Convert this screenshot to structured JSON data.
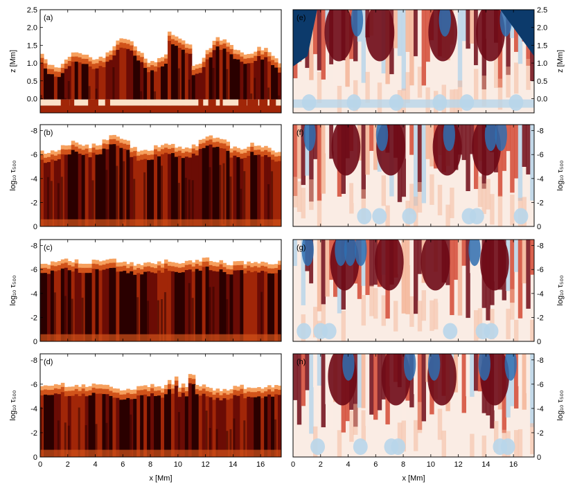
{
  "figure": {
    "x_axis_label": "x [Mm]",
    "x_ticks": [
      "0",
      "2",
      "4",
      "6",
      "8",
      "10",
      "12",
      "14",
      "16"
    ],
    "z_axis_label": "z [Mm]",
    "z_ticks": [
      "2.5",
      "2.0",
      "1.5",
      "1.0",
      "0.5",
      "0.0"
    ],
    "tau_axis_label": "log₁₀ τ₅₀₀",
    "tau_ticks": [
      "-8",
      "-6",
      "-4",
      "-2",
      "0"
    ],
    "panels": [
      {
        "label": "(a)",
        "column": "left",
        "row": 0,
        "axis": "z",
        "colormap": "heat"
      },
      {
        "label": "(b)",
        "column": "left",
        "row": 1,
        "axis": "tau",
        "colormap": "heat"
      },
      {
        "label": "(c)",
        "column": "left",
        "row": 2,
        "axis": "tau",
        "colormap": "heat"
      },
      {
        "label": "(d)",
        "column": "left",
        "row": 3,
        "axis": "tau",
        "colormap": "heat"
      },
      {
        "label": "(e)",
        "column": "right",
        "row": 0,
        "axis": "z",
        "colormap": "diverging"
      },
      {
        "label": "(f)",
        "column": "right",
        "row": 1,
        "axis": "tau",
        "colormap": "diverging"
      },
      {
        "label": "(g)",
        "column": "right",
        "row": 2,
        "axis": "tau",
        "colormap": "diverging"
      },
      {
        "label": "(h)",
        "column": "right",
        "row": 3,
        "axis": "tau",
        "colormap": "diverging"
      }
    ],
    "x_range": [
      0,
      17.5
    ],
    "z_range": [
      -0.4,
      2.5
    ],
    "tau_range": [
      0,
      -8.5
    ]
  },
  "colors": {
    "heat": [
      "#fff8f0",
      "#f6a05e",
      "#d1531a",
      "#a12608",
      "#6b0c05",
      "#2a0000"
    ],
    "diverging": [
      "#0c3a6b",
      "#2f6fb0",
      "#b8d6ea",
      "#faece4",
      "#f3b598",
      "#d24a35",
      "#6e0a16"
    ]
  }
}
